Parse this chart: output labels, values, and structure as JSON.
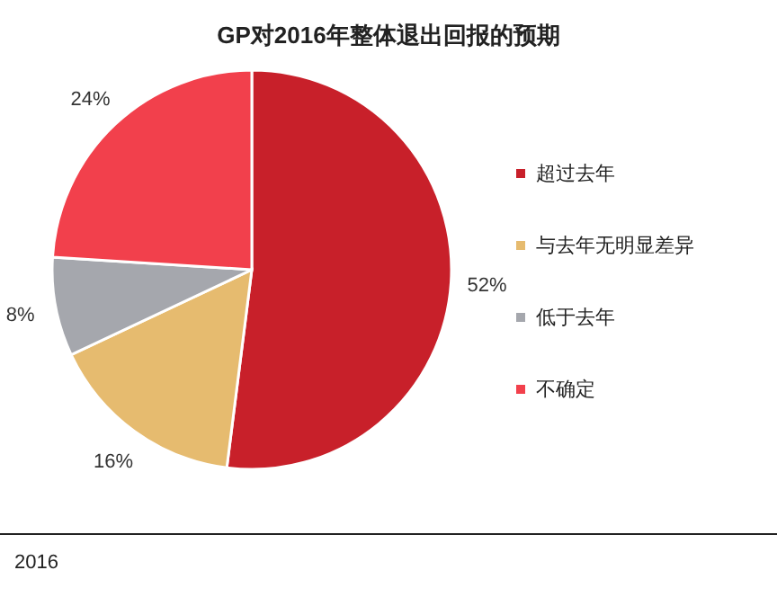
{
  "chart_data": {
    "type": "pie",
    "title": "GP对2016年整体退出回报的预期",
    "categories": [
      "超过去年",
      "与去年无明显差异",
      "低于去年",
      "不确定"
    ],
    "values": [
      52,
      16,
      8,
      24
    ],
    "colors": [
      "#c8202a",
      "#e6bb6f",
      "#a5a7ad",
      "#f2404c"
    ],
    "value_labels": [
      "52%",
      "16%",
      "8%",
      "24%"
    ],
    "legend": "right",
    "annotations": [
      "2016"
    ]
  }
}
